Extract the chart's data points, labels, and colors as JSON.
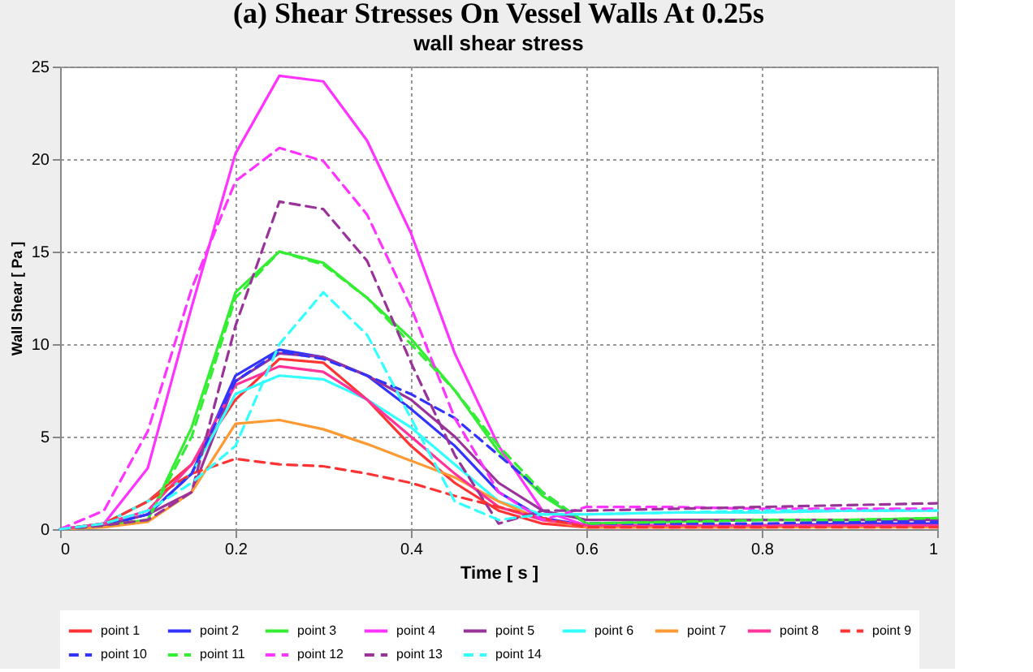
{
  "chart_data": {
    "type": "line",
    "title": "(a) Shear Stresses On Vessel Walls At 0.25s",
    "subtitle": "wall shear stress",
    "xlabel": "Time [ s ]",
    "ylabel": "Wall Shear [ Pa ]",
    "x": [
      0,
      0.05,
      0.1,
      0.15,
      0.2,
      0.25,
      0.3,
      0.35,
      0.4,
      0.45,
      0.5,
      0.55,
      0.6,
      0.7,
      0.8,
      0.9,
      1.0
    ],
    "xlim": [
      0,
      1
    ],
    "xticks": [
      0,
      0.2,
      0.4,
      0.6,
      0.8,
      1
    ],
    "ylim": [
      0,
      25
    ],
    "yticks": [
      0,
      5,
      10,
      15,
      20,
      25
    ],
    "grid": true,
    "legend": "bottom",
    "marker": "none",
    "series": [
      {
        "name": "point 1",
        "color": "#ff3333",
        "line_style": "solid",
        "values": [
          0,
          0.3,
          1.5,
          3.5,
          7,
          9.2,
          9,
          7,
          4.5,
          2.5,
          1,
          0.3,
          0.1,
          0.1,
          0.1,
          0.2,
          0.2
        ]
      },
      {
        "name": "point 2",
        "color": "#3333ff",
        "line_style": "solid",
        "values": [
          0,
          0.2,
          0.8,
          3,
          8.3,
          9.7,
          9.3,
          8.3,
          6.5,
          4.5,
          2,
          0.6,
          0.2,
          0.2,
          0.2,
          0.3,
          0.3
        ]
      },
      {
        "name": "point 3",
        "color": "#33ee33",
        "line_style": "solid",
        "values": [
          0,
          0.2,
          0.5,
          5.5,
          12.8,
          15,
          14.4,
          12.5,
          10.3,
          7.5,
          4.2,
          1.8,
          0.3,
          0.4,
          0.5,
          0.5,
          0.6
        ]
      },
      {
        "name": "point 4",
        "color": "#ff33ff",
        "line_style": "solid",
        "values": [
          0,
          0.3,
          3.3,
          12,
          20.3,
          24.5,
          24.2,
          21,
          16,
          9.5,
          4.5,
          1,
          0.2,
          0.1,
          null,
          null,
          null
        ]
      },
      {
        "name": "point 5",
        "color": "#993399",
        "line_style": "solid",
        "values": [
          0,
          0.2,
          0.8,
          2,
          8,
          9.5,
          9.3,
          8.3,
          7,
          5,
          2.5,
          1,
          0.5,
          0.5,
          0.5,
          0.5,
          0.5
        ]
      },
      {
        "name": "point 6",
        "color": "#33ffff",
        "line_style": "solid",
        "values": [
          0,
          0.3,
          1.5,
          3,
          7.3,
          8.3,
          8.1,
          7,
          5.5,
          3.5,
          1.5,
          0.8,
          0.8,
          0.9,
          0.9,
          1,
          1
        ]
      },
      {
        "name": "point 7",
        "color": "#ff9933",
        "line_style": "solid",
        "values": [
          0,
          0.1,
          0.4,
          2,
          5.7,
          5.9,
          5.4,
          4.6,
          3.7,
          2.8,
          1.5,
          0.5,
          0.1,
          0.1,
          0.1,
          0.1,
          0.1
        ]
      },
      {
        "name": "point 8",
        "color": "#ff3399",
        "line_style": "solid",
        "values": [
          0,
          0.3,
          1,
          3.5,
          7.8,
          8.8,
          8.5,
          7,
          5,
          3,
          1.2,
          0.5,
          0.2,
          0.2,
          0.2,
          0.2,
          0.2
        ]
      },
      {
        "name": "point 9",
        "color": "#ff3333",
        "line_style": "dashed",
        "values": [
          0,
          0.3,
          1.5,
          3,
          3.8,
          3.5,
          3.4,
          3,
          2.5,
          1.8,
          1.2,
          0.6,
          0.1,
          0.1,
          0.1,
          0.1,
          0.1
        ]
      },
      {
        "name": "point 10",
        "color": "#3333ff",
        "line_style": "dashed",
        "values": [
          0,
          0.2,
          0.8,
          3,
          8,
          9.6,
          9.2,
          8.3,
          7.3,
          6,
          4,
          2,
          0.3,
          0.3,
          0.3,
          0.4,
          0.4
        ]
      },
      {
        "name": "point 11",
        "color": "#33ee33",
        "line_style": "dashed",
        "values": [
          0,
          0.2,
          0.5,
          5,
          12.5,
          15,
          14.3,
          12.5,
          10,
          7.5,
          4.5,
          2,
          0.3,
          0.4,
          0.5,
          0.5,
          0.6
        ]
      },
      {
        "name": "point 12",
        "color": "#ff33ff",
        "line_style": "dashed",
        "values": [
          0,
          1,
          5.3,
          13,
          18.8,
          20.6,
          19.9,
          17,
          12,
          6,
          2,
          0.5,
          1.2,
          1.2,
          1.1,
          1.1,
          1.1
        ]
      },
      {
        "name": "point 13",
        "color": "#993399",
        "line_style": "dashed",
        "values": [
          0,
          0.2,
          0.5,
          2,
          11,
          17.7,
          17.3,
          14.5,
          9,
          4,
          0.3,
          1,
          1,
          1.1,
          1.2,
          1.3,
          1.4
        ]
      },
      {
        "name": "point 14",
        "color": "#33ffff",
        "line_style": "dashed",
        "values": [
          0,
          0.3,
          1,
          2.5,
          4.5,
          10,
          12.8,
          10.5,
          6,
          1.5,
          0.5,
          0.8,
          0.8,
          0.9,
          1,
          1,
          1
        ]
      }
    ]
  }
}
